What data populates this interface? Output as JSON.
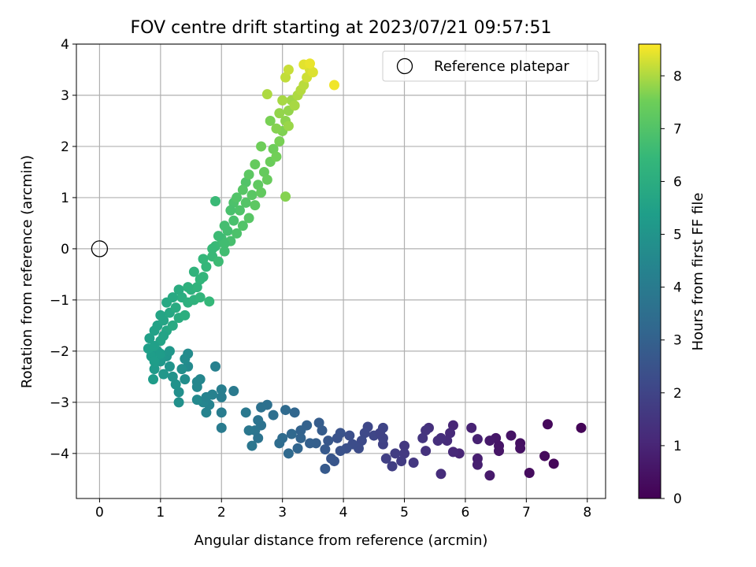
{
  "chart_data": {
    "type": "scatter",
    "title": "FOV centre drift starting at 2023/07/21 09:57:51",
    "xlabel": "Angular distance from reference (arcmin)",
    "ylabel": "Rotation from reference (arcmin)",
    "xlim": [
      -0.38,
      8.3
    ],
    "ylim": [
      -4.88,
      4.0
    ],
    "xticks": [
      0,
      1,
      2,
      3,
      4,
      5,
      6,
      7,
      8
    ],
    "yticks": [
      -4,
      -3,
      -2,
      -1,
      0,
      1,
      2,
      3,
      4
    ],
    "grid": true,
    "legend": {
      "position": "top-right",
      "entries": [
        {
          "label": "Reference platepar",
          "marker": "open-circle"
        }
      ]
    },
    "reference_point": {
      "x": 0,
      "y": 0,
      "label": "Reference platepar"
    },
    "colorbar": {
      "label": "Hours from first FF file",
      "colormap": "viridis",
      "range": [
        0,
        8.6
      ],
      "ticks": [
        0,
        1,
        2,
        3,
        4,
        5,
        6,
        7,
        8
      ]
    },
    "points": [
      [
        7.9,
        -3.5,
        0.1
      ],
      [
        7.45,
        -4.2,
        0.15
      ],
      [
        7.35,
        -3.43,
        0.2
      ],
      [
        7.3,
        -4.05,
        0.25
      ],
      [
        7.05,
        -4.38,
        0.3
      ],
      [
        6.9,
        -3.8,
        0.4
      ],
      [
        6.9,
        -3.9,
        0.45
      ],
      [
        6.75,
        -3.65,
        0.5
      ],
      [
        6.55,
        -3.95,
        0.55
      ],
      [
        6.5,
        -3.7,
        0.6
      ],
      [
        6.4,
        -3.75,
        0.65
      ],
      [
        6.4,
        -4.43,
        0.7
      ],
      [
        6.2,
        -4.1,
        0.8
      ],
      [
        6.2,
        -4.22,
        0.85
      ],
      [
        6.2,
        -3.72,
        0.9
      ],
      [
        6.1,
        -3.5,
        0.95
      ],
      [
        5.9,
        -4.0,
        1.0
      ],
      [
        5.8,
        -3.45,
        1.05
      ],
      [
        5.8,
        -3.97,
        1.1
      ],
      [
        5.75,
        -3.6,
        1.15
      ],
      [
        5.7,
        -3.75,
        1.2
      ],
      [
        5.6,
        -4.4,
        1.25
      ],
      [
        5.6,
        -3.7,
        1.3
      ],
      [
        5.4,
        -3.5,
        1.35
      ],
      [
        5.35,
        -3.95,
        1.4
      ],
      [
        5.35,
        -3.55,
        1.45
      ],
      [
        5.3,
        -3.7,
        1.5
      ],
      [
        5.15,
        -4.18,
        1.55
      ],
      [
        5.0,
        -3.85,
        1.6
      ],
      [
        5.0,
        -4.0,
        1.65
      ],
      [
        4.95,
        -4.15,
        1.7
      ],
      [
        4.85,
        -4.0,
        1.75
      ],
      [
        4.8,
        -4.25,
        1.8
      ],
      [
        4.7,
        -4.1,
        1.85
      ],
      [
        4.65,
        -3.82,
        1.9
      ],
      [
        4.65,
        -3.7,
        1.95
      ],
      [
        4.65,
        -3.5,
        2.0
      ],
      [
        4.5,
        -3.65,
        2.05
      ],
      [
        4.4,
        -3.48,
        2.1
      ],
      [
        4.35,
        -3.6,
        2.15
      ],
      [
        4.3,
        -3.75,
        2.2
      ],
      [
        4.25,
        -3.9,
        2.25
      ],
      [
        4.15,
        -3.82,
        2.3
      ],
      [
        4.1,
        -3.65,
        2.35
      ],
      [
        4.05,
        -3.9,
        2.4
      ],
      [
        3.95,
        -3.95,
        2.45
      ],
      [
        3.95,
        -3.6,
        2.5
      ],
      [
        3.85,
        -4.15,
        2.55
      ],
      [
        3.8,
        -4.1,
        2.6
      ],
      [
        3.75,
        -3.75,
        2.65
      ],
      [
        3.7,
        -3.92,
        2.7
      ],
      [
        3.7,
        -4.3,
        2.75
      ],
      [
        3.65,
        -3.55,
        2.8
      ],
      [
        3.6,
        -3.4,
        2.85
      ],
      [
        3.55,
        -3.8,
        2.9
      ],
      [
        3.45,
        -3.8,
        2.95
      ],
      [
        3.4,
        -3.45,
        3.0
      ],
      [
        3.3,
        -3.55,
        3.05
      ],
      [
        3.3,
        -3.7,
        3.1
      ],
      [
        3.25,
        -3.9,
        3.15
      ],
      [
        3.2,
        -3.2,
        3.2
      ],
      [
        3.15,
        -3.62,
        3.25
      ],
      [
        3.1,
        -4.0,
        3.3
      ],
      [
        3.05,
        -3.15,
        3.35
      ],
      [
        3.0,
        -3.7,
        3.4
      ],
      [
        2.95,
        -3.8,
        3.45
      ],
      [
        2.85,
        -3.25,
        3.5
      ],
      [
        2.75,
        -3.05,
        3.55
      ],
      [
        2.65,
        -3.1,
        3.6
      ],
      [
        2.65,
        -3.45,
        3.65
      ],
      [
        2.6,
        -3.35,
        3.7
      ],
      [
        2.55,
        -3.55,
        3.75
      ],
      [
        2.5,
        -3.85,
        3.8
      ],
      [
        2.45,
        -3.55,
        3.85
      ],
      [
        2.4,
        -3.2,
        3.9
      ],
      [
        2.2,
        -2.78,
        3.95
      ],
      [
        2.0,
        -3.5,
        4.0
      ],
      [
        2.0,
        -3.2,
        4.05
      ],
      [
        2.0,
        -2.9,
        4.1
      ],
      [
        2.0,
        -2.75,
        4.15
      ],
      [
        1.9,
        -2.3,
        4.2
      ],
      [
        1.85,
        -2.85,
        4.25
      ],
      [
        1.8,
        -3.05,
        4.3
      ],
      [
        1.75,
        -3.2,
        4.35
      ],
      [
        1.7,
        -3.0,
        4.4
      ],
      [
        1.65,
        -2.55,
        4.45
      ],
      [
        1.6,
        -2.6,
        4.5
      ],
      [
        1.6,
        -2.95,
        4.55
      ],
      [
        1.45,
        -2.3,
        4.6
      ],
      [
        1.45,
        -2.05,
        4.65
      ],
      [
        1.4,
        -2.15,
        4.7
      ],
      [
        1.4,
        -2.55,
        4.75
      ],
      [
        1.3,
        -2.8,
        4.8
      ],
      [
        1.3,
        -3.0,
        4.85
      ],
      [
        1.25,
        -2.65,
        4.9
      ],
      [
        1.2,
        -2.5,
        4.95
      ],
      [
        1.15,
        -2.3,
        5.0
      ],
      [
        1.1,
        -2.1,
        5.05
      ],
      [
        1.05,
        -2.45,
        5.1
      ],
      [
        1.0,
        -2.2,
        5.15
      ],
      [
        0.95,
        -2.0,
        5.2
      ],
      [
        0.9,
        -2.35,
        5.25
      ],
      [
        0.88,
        -2.55,
        5.3
      ],
      [
        0.85,
        -2.1,
        5.35
      ],
      [
        0.8,
        -1.95,
        5.4
      ],
      [
        0.82,
        -1.75,
        5.45
      ],
      [
        0.9,
        -1.6,
        5.5
      ],
      [
        0.95,
        -1.5,
        5.55
      ],
      [
        1.0,
        -1.8,
        5.6
      ],
      [
        1.05,
        -1.4,
        5.65
      ],
      [
        1.1,
        -1.6,
        5.7
      ],
      [
        1.15,
        -1.25,
        5.75
      ],
      [
        1.1,
        -1.05,
        5.8
      ],
      [
        1.2,
        -1.5,
        5.85
      ],
      [
        1.25,
        -1.15,
        5.9
      ],
      [
        1.3,
        -1.35,
        5.95
      ],
      [
        1.35,
        -0.95,
        6.0
      ],
      [
        1.4,
        -1.3,
        6.05
      ],
      [
        1.45,
        -1.05,
        6.1
      ],
      [
        1.5,
        -0.8,
        6.15
      ],
      [
        1.55,
        -1.0,
        6.2
      ],
      [
        1.6,
        -0.75,
        6.25
      ],
      [
        1.65,
        -0.95,
        6.3
      ],
      [
        1.7,
        -0.55,
        6.35
      ],
      [
        1.75,
        -0.35,
        6.4
      ],
      [
        1.8,
        -1.03,
        6.45
      ],
      [
        1.85,
        -0.15,
        6.5
      ],
      [
        1.9,
        0.05,
        6.55
      ],
      [
        1.95,
        -0.25,
        6.6
      ],
      [
        2.0,
        0.2,
        6.65
      ],
      [
        2.05,
        -0.05,
        6.7
      ],
      [
        2.1,
        0.35,
        6.75
      ],
      [
        2.15,
        0.15,
        6.8
      ],
      [
        2.2,
        0.55,
        6.85
      ],
      [
        2.25,
        0.3,
        6.9
      ],
      [
        2.3,
        0.75,
        6.95
      ],
      [
        2.35,
        0.45,
        7.0
      ],
      [
        2.4,
        0.9,
        7.05
      ],
      [
        2.45,
        0.6,
        7.1
      ],
      [
        2.5,
        1.05,
        7.15
      ],
      [
        2.55,
        0.85,
        7.2
      ],
      [
        2.6,
        1.25,
        7.25
      ],
      [
        2.65,
        1.1,
        7.3
      ],
      [
        2.7,
        1.5,
        7.35
      ],
      [
        2.75,
        1.35,
        7.4
      ],
      [
        2.8,
        1.7,
        7.45
      ],
      [
        2.85,
        1.95,
        7.5
      ],
      [
        2.9,
        1.8,
        7.55
      ],
      [
        2.95,
        2.1,
        7.6
      ],
      [
        3.0,
        2.3,
        7.65
      ],
      [
        3.05,
        1.02,
        7.7
      ],
      [
        3.05,
        2.5,
        7.75
      ],
      [
        3.1,
        2.7,
        7.8
      ],
      [
        3.1,
        2.4,
        7.85
      ],
      [
        3.15,
        2.9,
        7.9
      ],
      [
        3.2,
        2.8,
        7.95
      ],
      [
        3.25,
        3.0,
        8.0
      ],
      [
        3.3,
        3.1,
        8.05
      ],
      [
        3.35,
        3.2,
        8.1
      ],
      [
        3.05,
        3.35,
        8.15
      ],
      [
        3.1,
        3.5,
        8.2
      ],
      [
        3.4,
        3.35,
        8.25
      ],
      [
        3.45,
        3.5,
        8.3
      ],
      [
        3.5,
        3.45,
        8.35
      ],
      [
        3.35,
        3.6,
        8.4
      ],
      [
        3.45,
        3.62,
        8.45
      ],
      [
        3.85,
        3.2,
        8.5
      ],
      [
        1.9,
        0.93,
        6.55
      ],
      [
        2.75,
        3.02,
        8.0
      ],
      [
        2.8,
        2.5,
        7.6
      ],
      [
        2.4,
        1.3,
        7.0
      ],
      [
        2.2,
        0.9,
        6.9
      ],
      [
        2.05,
        0.1,
        6.7
      ],
      [
        1.7,
        -0.2,
        6.4
      ],
      [
        1.55,
        -0.45,
        6.25
      ],
      [
        1.3,
        -0.8,
        5.95
      ],
      [
        1.2,
        -0.95,
        5.85
      ],
      [
        1.0,
        -1.3,
        5.65
      ],
      [
        0.9,
        -1.9,
        5.45
      ],
      [
        1.0,
        -2.05,
        5.3
      ],
      [
        1.15,
        -2.0,
        5.1
      ],
      [
        1.35,
        -2.35,
        4.8
      ],
      [
        1.6,
        -2.7,
        4.5
      ],
      [
        1.75,
        -2.9,
        4.35
      ],
      [
        2.6,
        -3.7,
        3.7
      ],
      [
        3.9,
        -3.7,
        2.5
      ],
      [
        4.6,
        -3.6,
        1.95
      ],
      [
        5.55,
        -3.75,
        1.3
      ],
      [
        6.55,
        -3.85,
        0.55
      ],
      [
        2.9,
        2.35,
        7.7
      ],
      [
        2.95,
        2.65,
        7.8
      ],
      [
        3.0,
        2.9,
        7.95
      ],
      [
        2.65,
        2.0,
        7.5
      ],
      [
        2.55,
        1.65,
        7.35
      ],
      [
        2.45,
        1.45,
        7.2
      ],
      [
        2.35,
        1.15,
        7.1
      ],
      [
        2.25,
        1.0,
        7.0
      ],
      [
        2.15,
        0.75,
        6.85
      ],
      [
        2.05,
        0.45,
        6.75
      ],
      [
        1.95,
        0.25,
        6.6
      ],
      [
        1.85,
        0.0,
        6.5
      ],
      [
        1.65,
        -0.6,
        6.3
      ],
      [
        1.45,
        -0.75,
        6.15
      ],
      [
        1.05,
        -1.7,
        5.6
      ],
      [
        0.9,
        -2.2,
        5.35
      ]
    ]
  }
}
